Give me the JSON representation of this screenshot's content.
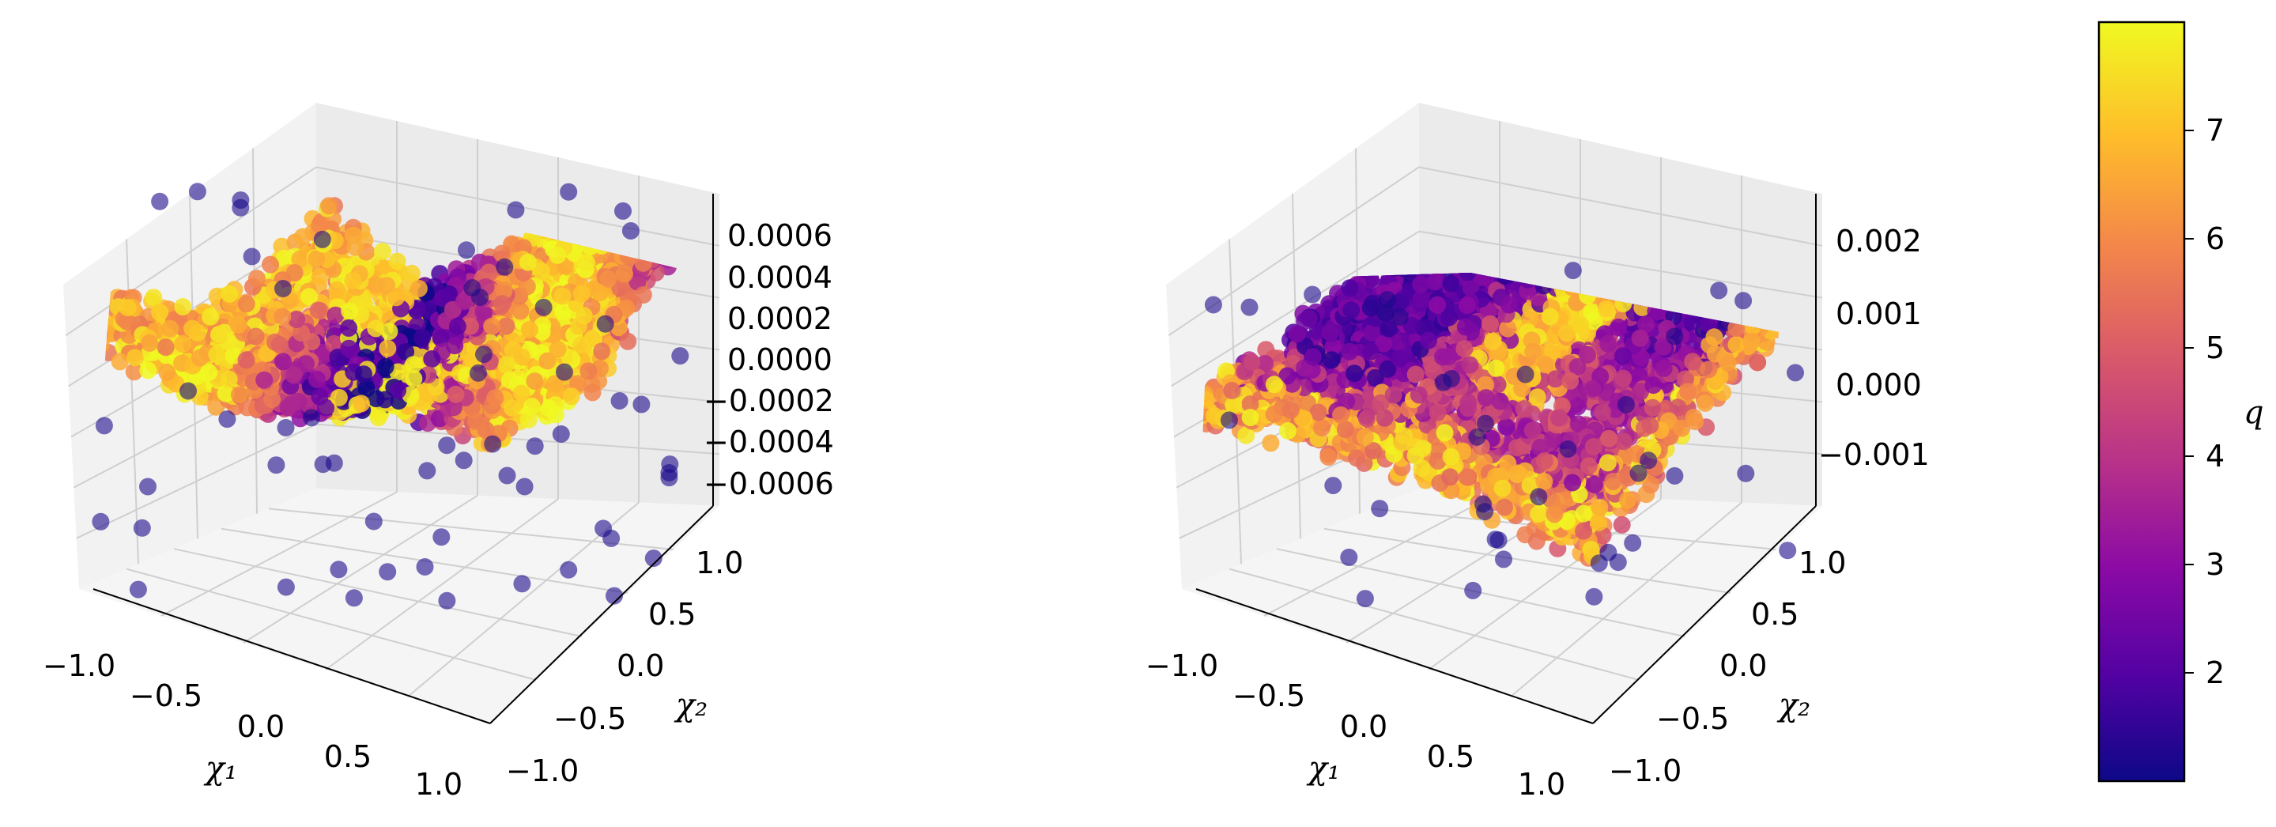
{
  "chart_data": [
    {
      "type": "scatter",
      "projection": "3d",
      "title": "",
      "xlabel": "χ₁",
      "ylabel": "χ₂",
      "zlabel": "",
      "xlim": [
        -1.0,
        1.0
      ],
      "ylim": [
        -1.0,
        1.0
      ],
      "zlim": [
        -0.00065,
        0.0007
      ],
      "x_ticks": [
        "−1.0",
        "−0.5",
        "0.0",
        "0.5",
        "1.0"
      ],
      "y_ticks": [
        "−1.0",
        "−0.5",
        "0.0",
        "0.5",
        "1.0"
      ],
      "z_ticks": [
        "0.0006",
        "0.0004",
        "0.0002",
        "0.0000",
        "−0.0002",
        "−0.0004",
        "−0.0006"
      ],
      "grid": true,
      "colormap": "plasma",
      "color_variable": "q",
      "surface": "wavy sheet near z=0, low-q bands around the middle, high-q near edges"
    },
    {
      "type": "scatter",
      "projection": "3d",
      "title": "",
      "xlabel": "χ₁",
      "ylabel": "χ₂",
      "zlabel": "",
      "xlim": [
        -1.0,
        1.0
      ],
      "ylim": [
        -1.0,
        1.0
      ],
      "zlim": [
        -0.0016,
        0.0024
      ],
      "x_ticks": [
        "−1.0",
        "−0.5",
        "0.0",
        "0.5",
        "1.0"
      ],
      "y_ticks": [
        "−1.0",
        "−0.5",
        "0.0",
        "0.5",
        "1.0"
      ],
      "z_ticks": [
        "0.002",
        "0.001",
        "0.000",
        "−0.001"
      ],
      "grid": true,
      "colormap": "plasma",
      "color_variable": "q",
      "surface": "flat sheet near z=0, low-q band along one side, high-q ridge in middle"
    }
  ],
  "colorbar": {
    "label": "q",
    "min": 1.0,
    "max": 8.0,
    "ticks": [
      "2",
      "3",
      "4",
      "5",
      "6",
      "7"
    ],
    "colors": [
      "#0d0887",
      "#5302a3",
      "#8b0aa5",
      "#b83289",
      "#db5c68",
      "#f48849",
      "#febd2a",
      "#f0f921"
    ]
  }
}
